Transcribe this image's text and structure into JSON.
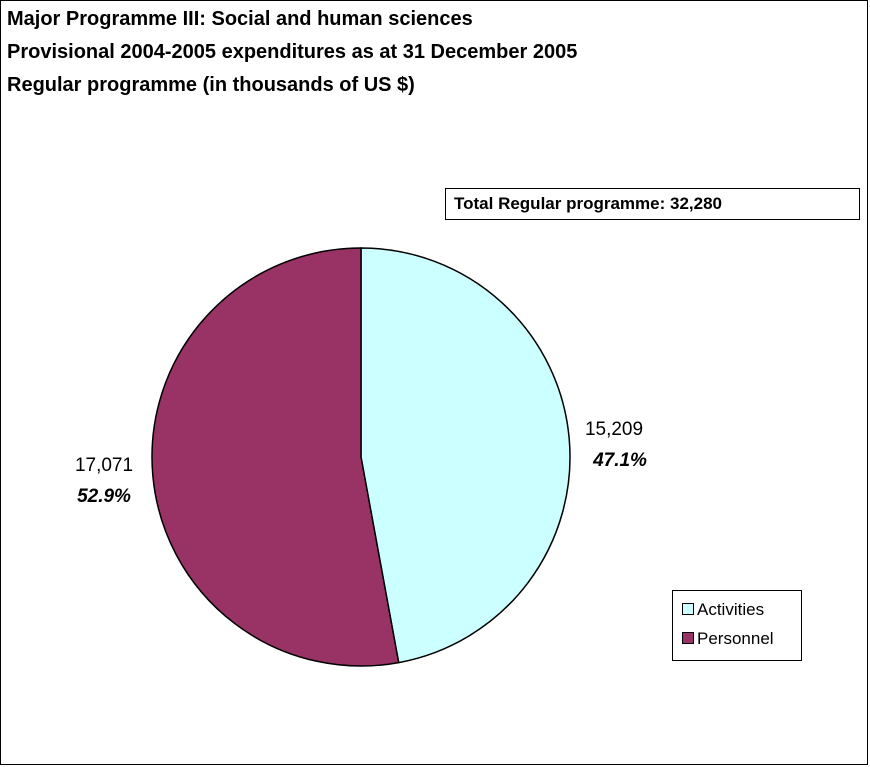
{
  "chart_data": {
    "type": "pie",
    "title": [
      "Major Programme III: Social and human sciences",
      "Provisional 2004-2005 expenditures as at 31 December 2005",
      "Regular programme (in thousands of US $)"
    ],
    "total_label": "Total Regular programme: 32,280",
    "slices": [
      {
        "name": "Activities",
        "value": 15209,
        "value_label": "15,209",
        "percent_label": "47.1%",
        "color": "#ccffff"
      },
      {
        "name": "Personnel",
        "value": 17071,
        "value_label": "17,071",
        "percent_label": "52.9%",
        "color": "#993366"
      }
    ],
    "legend_placement": "right"
  }
}
